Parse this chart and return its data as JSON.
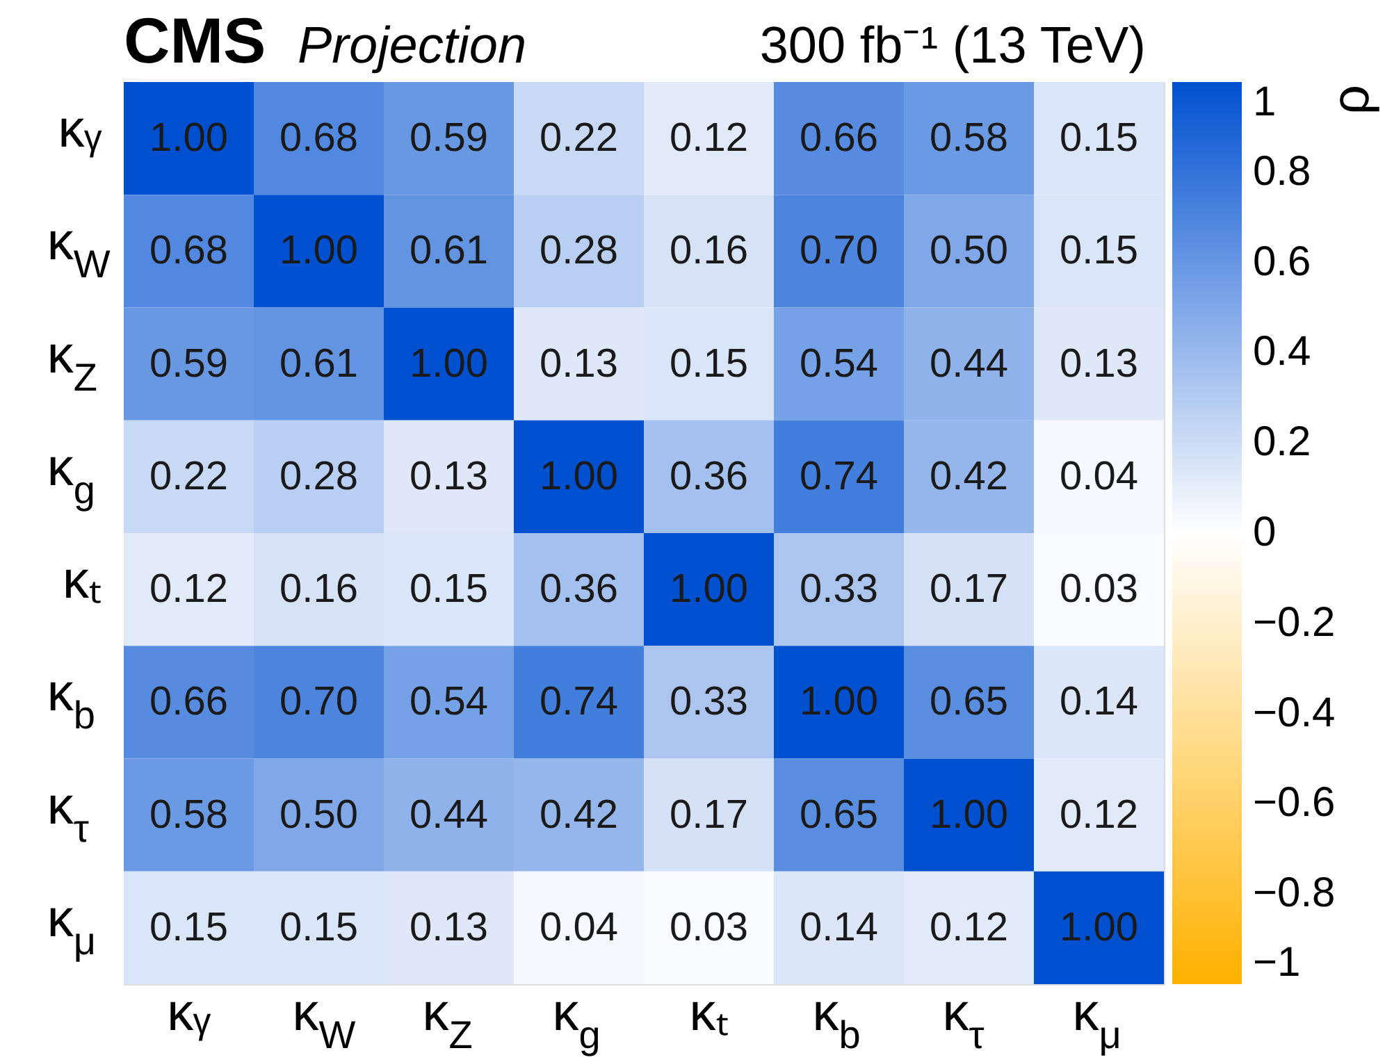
{
  "chart_data": {
    "type": "heatmap",
    "title": "CMS",
    "subtitle": "Projection",
    "annotations": [
      "300 fb⁻¹ (13 TeV)"
    ],
    "categories": [
      "κᵧ",
      "κ$_{W}$",
      "κ$_{Z}$",
      "κ$_{g}$",
      "κₜ",
      "κ$_{b}$",
      "κ$_{τ}$",
      "κ$_{μ}$"
    ],
    "y_categories": [
      "κᵧ",
      "κ$_{W}$",
      "κ$_{Z}$",
      "κ$_{g}$",
      "κₜ",
      "κ$_{b}$",
      "κ$_{τ}$",
      "κ$_{μ}$"
    ],
    "cells": [
      [
        1.0,
        0.68,
        0.59,
        0.22,
        0.12,
        0.66,
        0.58,
        0.15
      ],
      [
        0.68,
        1.0,
        0.61,
        0.28,
        0.16,
        0.7,
        0.5,
        0.15
      ],
      [
        0.59,
        0.61,
        1.0,
        0.13,
        0.15,
        0.54,
        0.44,
        0.13
      ],
      [
        0.22,
        0.28,
        0.13,
        1.0,
        0.36,
        0.74,
        0.42,
        0.04
      ],
      [
        0.12,
        0.16,
        0.15,
        0.36,
        1.0,
        0.33,
        0.17,
        0.03
      ],
      [
        0.66,
        0.7,
        0.54,
        0.74,
        0.33,
        1.0,
        0.65,
        0.14
      ],
      [
        0.58,
        0.5,
        0.44,
        0.42,
        0.17,
        0.65,
        1.0,
        0.12
      ],
      [
        0.15,
        0.15,
        0.13,
        0.04,
        0.03,
        0.14,
        0.12,
        1.0
      ]
    ],
    "cell_labels": [
      [
        "1.00",
        "0.68",
        "0.59",
        "0.22",
        "0.12",
        "0.66",
        "0.58",
        "0.15"
      ],
      [
        "0.68",
        "1.00",
        "0.61",
        "0.28",
        "0.16",
        "0.70",
        "0.50",
        "0.15"
      ],
      [
        "0.59",
        "0.61",
        "1.00",
        "0.13",
        "0.15",
        "0.54",
        "0.44",
        "0.13"
      ],
      [
        "0.22",
        "0.28",
        "0.13",
        "1.00",
        "0.36",
        "0.74",
        "0.42",
        "0.04"
      ],
      [
        "0.12",
        "0.16",
        "0.15",
        "0.36",
        "1.00",
        "0.33",
        "0.17",
        "0.03"
      ],
      [
        "0.66",
        "0.70",
        "0.54",
        "0.74",
        "0.33",
        "1.00",
        "0.65",
        "0.14"
      ],
      [
        "0.58",
        "0.50",
        "0.44",
        "0.42",
        "0.17",
        "0.65",
        "1.00",
        "0.12"
      ],
      [
        "0.15",
        "0.15",
        "0.13",
        "0.04",
        "0.03",
        "0.14",
        "0.12",
        "1.00"
      ]
    ],
    "clabel": "ρ",
    "clim": [
      -1,
      1
    ],
    "cticks": [
      -1,
      -0.8,
      -0.6,
      -0.4,
      -0.2,
      0,
      0.2,
      0.4,
      0.6,
      0.8,
      1
    ],
    "colors": [
      "#ffb000",
      "#ffffff",
      "#0050d0"
    ]
  }
}
